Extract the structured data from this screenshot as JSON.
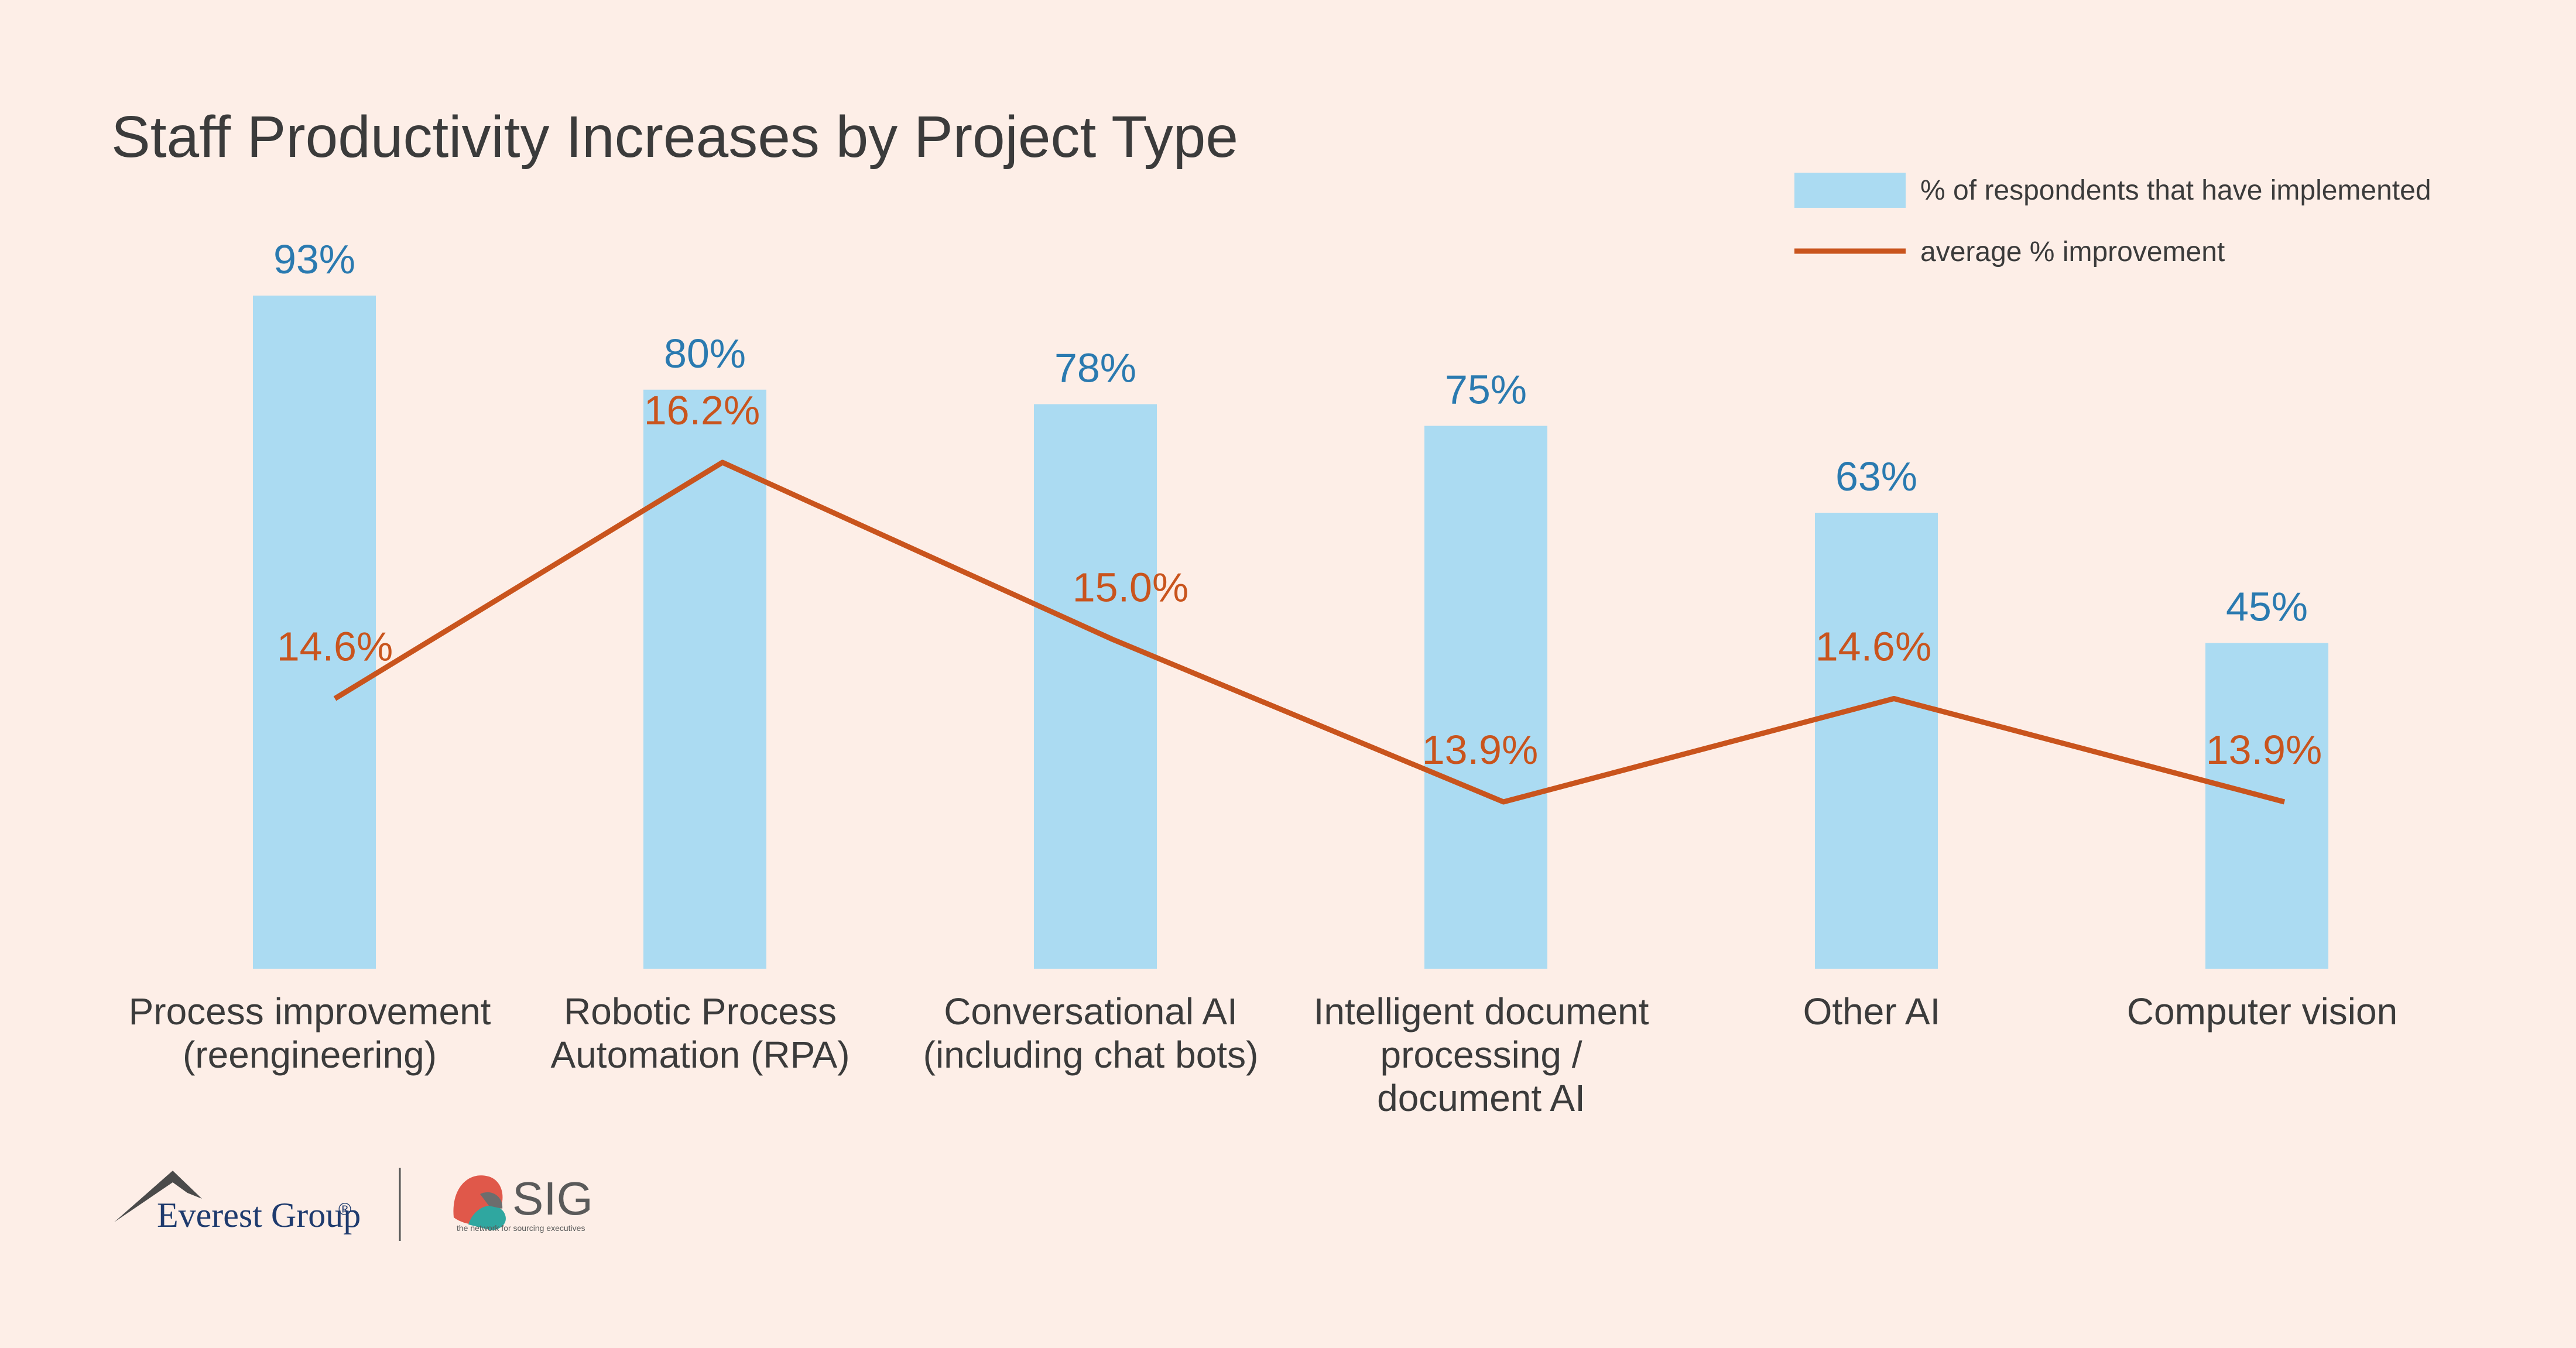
{
  "colors": {
    "background": "#fdeee7",
    "bar": "#abdbf2",
    "line": "#c9541d",
    "bar_label": "#2a7ab0",
    "text": "#3b3b3b"
  },
  "chart_data": {
    "type": "bar",
    "title": "Staff Productivity Increases by Project Type",
    "categories": [
      [
        "Process improvement",
        "(reengineering)"
      ],
      [
        "Robotic Process",
        "Automation (RPA)"
      ],
      [
        "Conversational AI",
        "(including chat bots)"
      ],
      [
        "Intelligent document",
        "processing /",
        "document AI"
      ],
      [
        "Other AI"
      ],
      [
        "Computer vision"
      ]
    ],
    "series": [
      {
        "name": "% of respondents that have implemented",
        "type": "bar",
        "values": [
          93,
          80,
          78,
          75,
          63,
          45
        ],
        "labels": [
          "93%",
          "80%",
          "78%",
          "75%",
          "63%",
          "45%"
        ]
      },
      {
        "name": "average % improvement",
        "type": "line",
        "values": [
          14.6,
          16.2,
          15.0,
          13.9,
          14.6,
          13.9
        ],
        "labels": [
          "14.6%",
          "16.2%",
          "15.0%",
          "13.9%",
          "14.6%",
          "13.9%"
        ]
      }
    ],
    "legend_position": "top-right",
    "grid": false
  },
  "logos": {
    "everest": "Everest Group",
    "everest_mark": "®",
    "sig": "SIG",
    "sig_tagline": "the network for sourcing executives"
  }
}
